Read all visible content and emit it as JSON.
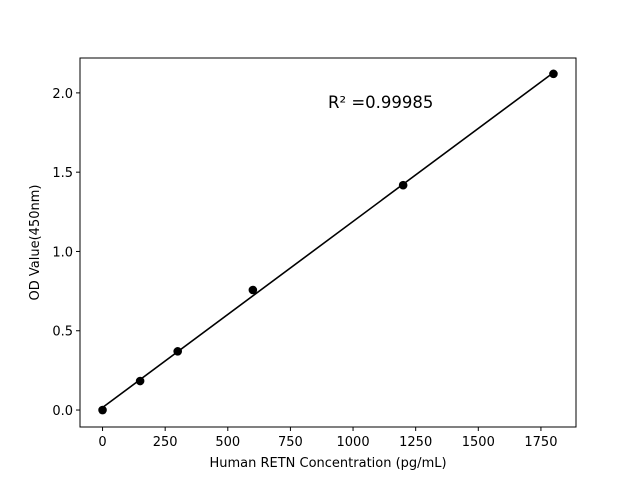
{
  "chart_data": {
    "type": "scatter",
    "title": "",
    "xlabel": "Human RETN Concentration (pg/mL)",
    "ylabel": "OD Value(450nm)",
    "xlim": [
      -90,
      1890
    ],
    "ylim": [
      -0.107,
      2.22
    ],
    "xticks": [
      0,
      250,
      500,
      750,
      1000,
      1250,
      1500,
      1750
    ],
    "xtick_labels": [
      "0",
      "250",
      "500",
      "750",
      "1000",
      "1250",
      "1500",
      "1750"
    ],
    "yticks": [
      0.0,
      0.5,
      1.0,
      1.5,
      2.0
    ],
    "ytick_labels": [
      "0.0",
      "0.5",
      "1.0",
      "1.5",
      "2.0"
    ],
    "grid": false,
    "x": [
      0,
      150,
      300,
      600,
      1200,
      1800
    ],
    "y": [
      0.0,
      0.183,
      0.37,
      0.757,
      1.418,
      2.12
    ],
    "fit_line": "linear",
    "annotation": "R² =0.99985",
    "color": "#000000"
  }
}
